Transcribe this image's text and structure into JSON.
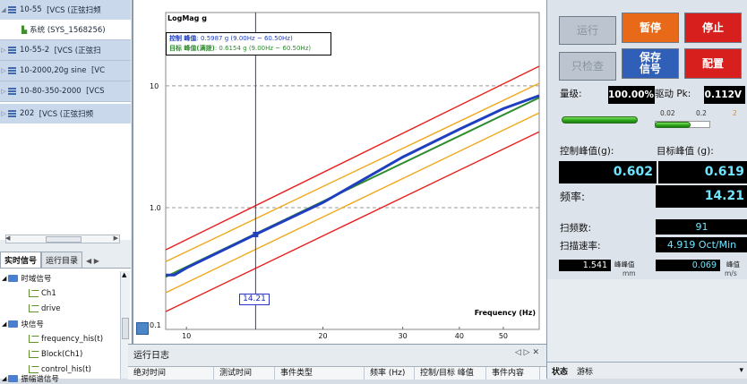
{
  "left_tree": {
    "items": [
      {
        "arrow": "◢",
        "label": "10-55",
        "suffix": "[VCS (正弦扫频"
      },
      {
        "arrow": "",
        "label": "系统 (SYS_1568256)",
        "suffix": ""
      },
      {
        "arrow": "▷",
        "label": "10-55-2",
        "suffix": "[VCS (正弦扫"
      },
      {
        "arrow": "▷",
        "label": "10-2000,20g sine",
        "suffix": "[VC"
      },
      {
        "arrow": "▷",
        "label": "10-80-350-2000",
        "suffix": "[VCS"
      },
      {
        "arrow": "▷",
        "label": "202",
        "suffix": "[VCS (正弦扫频"
      }
    ]
  },
  "left_tabs": {
    "tab1": "实时信号",
    "tab2": "运行目录"
  },
  "signal_tree": {
    "time_group": "时域信号",
    "ch1": "Ch1",
    "drive": "drive",
    "block_group": "块信号",
    "freq_his": "frequency_his(t)",
    "block_ch1": "Block(Ch1)",
    "control_his": "control_his(t)",
    "spectrum_group": "振幅谱信号"
  },
  "chart": {
    "title": "LogMag g",
    "legend_line1_a": "控制 峰值",
    "legend_line1_b": ": 0.5987 g (9.00Hz ~ 60.50Hz)",
    "legend_line2_a": "目标 峰值(满拨)",
    "legend_line2_b": ": 0.6154 g (9.00Hz ~ 60.50Hz)",
    "xlabel": "Frequency (Hz)",
    "y_ticks": [
      "10",
      "1.0",
      "0.1"
    ],
    "x_ticks": [
      "10",
      "20",
      "30",
      "40",
      "50"
    ],
    "marker_value": "14.21",
    "colors": {
      "abort": "#e8201d",
      "alarm": "#f0a81a",
      "target": "#2e8b2e",
      "control": "#1f3fbf",
      "cursor": "#2d35c7"
    }
  },
  "chart_data": {
    "type": "line",
    "title": "LogMag g",
    "xlabel": "Frequency (Hz)",
    "ylabel": "",
    "x_scale": "log",
    "y_scale": "log",
    "xlim": [
      9,
      60
    ],
    "ylim": [
      0.1,
      40
    ],
    "grid": "dashed horizontal at 1.0 and 10",
    "series": [
      {
        "color": "#e8201d",
        "x": [
          9,
          60
        ],
        "y": [
          0.45,
          14.5
        ]
      },
      {
        "color": "#e8201d",
        "x": [
          9,
          60
        ],
        "y": [
          0.14,
          4.2
        ]
      },
      {
        "color": "#f0a81a",
        "x": [
          9,
          60
        ],
        "y": [
          0.36,
          10.5
        ]
      },
      {
        "color": "#f0a81a",
        "x": [
          9,
          60
        ],
        "y": [
          0.2,
          6.0
        ]
      },
      {
        "color": "#2e8b2e",
        "x": [
          9,
          60
        ],
        "y": [
          0.27,
          8.0
        ]
      },
      {
        "color": "#1f3fbf",
        "x": [
          9,
          9.4,
          10,
          14.21,
          20,
          30,
          40,
          50,
          60
        ],
        "y": [
          0.28,
          0.28,
          0.32,
          0.602,
          1.1,
          2.6,
          4.4,
          6.5,
          8.3
        ]
      }
    ],
    "cursor_x": 14.21
  },
  "log": {
    "title": "运行日志",
    "controls": "◁ ▷ ✕",
    "headers": [
      "绝对时间",
      "测试时间",
      "事件类型",
      "频率 (Hz)",
      "控制/目标 峰值",
      "事件内容"
    ]
  },
  "right": {
    "run": "运行",
    "pause": "暂停",
    "stop": "停止",
    "check": "只检查",
    "save_line1": "保存",
    "save_line2": "信号",
    "config": "配置",
    "level_label": "量级:",
    "level_value": "100.00%",
    "drive_label": "驱动 Pk:",
    "drive_value": "0.112V",
    "scale_a": "0.02",
    "scale_b": "0.2",
    "scale_c": "2",
    "control_peak_label": "控制峰值(g):",
    "target_peak_label": "目标峰值 (g):",
    "control_peak_value": "0.602",
    "target_peak_value": "0.619",
    "freq_label": "频率:",
    "freq_value": "14.21",
    "sweep_count_label": "扫频数:",
    "sweep_count_value": "91",
    "sweep_rate_label": "扫描速率:",
    "sweep_rate_value": "4.919 Oct/Min",
    "disp_value": "1.541",
    "disp_label": "峰峰值",
    "disp_unit": "mm",
    "vel_value": "0.069",
    "vel_label": "峰值",
    "vel_unit": "m/s",
    "tab_status": "状态",
    "tab_cursor": "游标",
    "tab_arrow": "▾"
  }
}
